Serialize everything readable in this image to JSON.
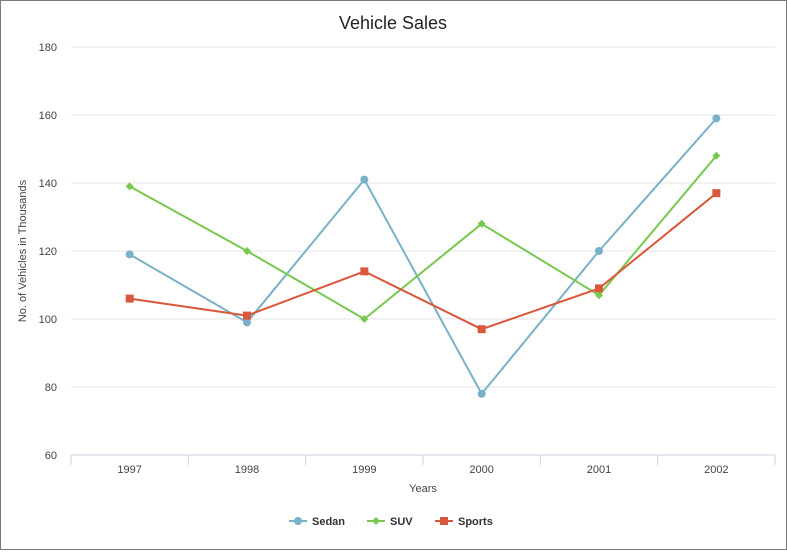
{
  "chart_data": {
    "type": "line",
    "title": "Vehicle Sales",
    "xlabel": "Years",
    "ylabel": "No. of Vehicles in Thousands",
    "categories": [
      "1997",
      "1998",
      "1999",
      "2000",
      "2001",
      "2002"
    ],
    "ylim": [
      60,
      180
    ],
    "yticks": [
      60,
      80,
      100,
      120,
      140,
      160,
      180
    ],
    "grid": true,
    "legend_position": "bottom",
    "series": [
      {
        "name": "Sedan",
        "values": [
          119,
          99,
          141,
          78,
          120,
          159
        ],
        "color": "#7ab0c8",
        "marker": "circle"
      },
      {
        "name": "SUV",
        "values": [
          139,
          120,
          100,
          128,
          107,
          148
        ],
        "color": "#78c850",
        "marker": "diamond"
      },
      {
        "name": "Sports",
        "values": [
          106,
          101,
          114,
          97,
          109,
          137
        ],
        "color": "#d9573a",
        "marker": "square"
      }
    ]
  }
}
